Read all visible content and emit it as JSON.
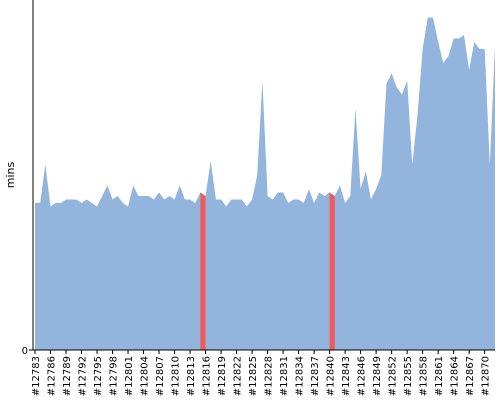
{
  "chart_data": {
    "type": "area",
    "y_label": "mins",
    "categories": [
      "#12783",
      null,
      null,
      "#12786",
      null,
      null,
      "#12789",
      null,
      null,
      "#12792",
      null,
      null,
      "#12795",
      null,
      null,
      "#12798",
      null,
      null,
      "#12801",
      null,
      null,
      "#12804",
      null,
      null,
      "#12807",
      null,
      null,
      "#12810",
      null,
      null,
      "#12813",
      null,
      null,
      "#12816",
      null,
      null,
      "#12819",
      null,
      null,
      "#12822",
      null,
      null,
      "#12825",
      null,
      null,
      "#12828",
      null,
      null,
      "#12831",
      null,
      null,
      "#12834",
      null,
      null,
      "#12837",
      null,
      null,
      "#12840",
      null,
      null,
      "#12843",
      null,
      null,
      "#12846",
      null,
      null,
      "#12849",
      null,
      null,
      "#12852",
      null,
      null,
      "#12855",
      null,
      null,
      "#12858",
      null,
      null,
      "#12861",
      null,
      null,
      "#12864",
      null,
      null,
      "#12867",
      null,
      null,
      "#12870",
      null,
      null
    ],
    "series": [
      {
        "color": "#92b4dd",
        "values": [
          42,
          42,
          53,
          41,
          42,
          42,
          43,
          43,
          43,
          42,
          43,
          42,
          41,
          44,
          47,
          43,
          44,
          42,
          41,
          47,
          44,
          44,
          44,
          43,
          45,
          43,
          44,
          43,
          47,
          43,
          43,
          42,
          45,
          44,
          54,
          43,
          43,
          41,
          43,
          43,
          43,
          41,
          43,
          50,
          77,
          44,
          43,
          45,
          45,
          42,
          43,
          43,
          42,
          46,
          42,
          45,
          44,
          45,
          44,
          47,
          42,
          44,
          69,
          46,
          51,
          43,
          46,
          50,
          76,
          79,
          75,
          73,
          77,
          53,
          67,
          86,
          95,
          95,
          88,
          82,
          84,
          89,
          89,
          90,
          80,
          88,
          86,
          86,
          53,
          87
        ]
      },
      {
        "color": "#ef5a5a",
        "values": [
          null,
          null,
          null,
          null,
          null,
          null,
          null,
          null,
          null,
          null,
          null,
          null,
          null,
          null,
          null,
          null,
          null,
          null,
          null,
          null,
          null,
          null,
          null,
          null,
          null,
          null,
          null,
          null,
          null,
          null,
          null,
          null,
          45,
          44,
          null,
          null,
          null,
          null,
          null,
          null,
          null,
          null,
          null,
          null,
          null,
          null,
          null,
          null,
          null,
          null,
          null,
          null,
          null,
          null,
          null,
          null,
          null,
          45,
          44,
          null,
          null,
          null,
          null,
          null,
          null,
          null,
          null,
          null,
          null,
          null,
          null,
          null,
          null,
          null,
          null,
          null,
          null,
          null,
          null,
          null,
          null,
          null,
          null,
          null,
          null,
          null,
          null,
          null,
          null,
          null
        ]
      }
    ],
    "ylim": [
      0,
      100
    ],
    "yticks": [
      0
    ]
  }
}
